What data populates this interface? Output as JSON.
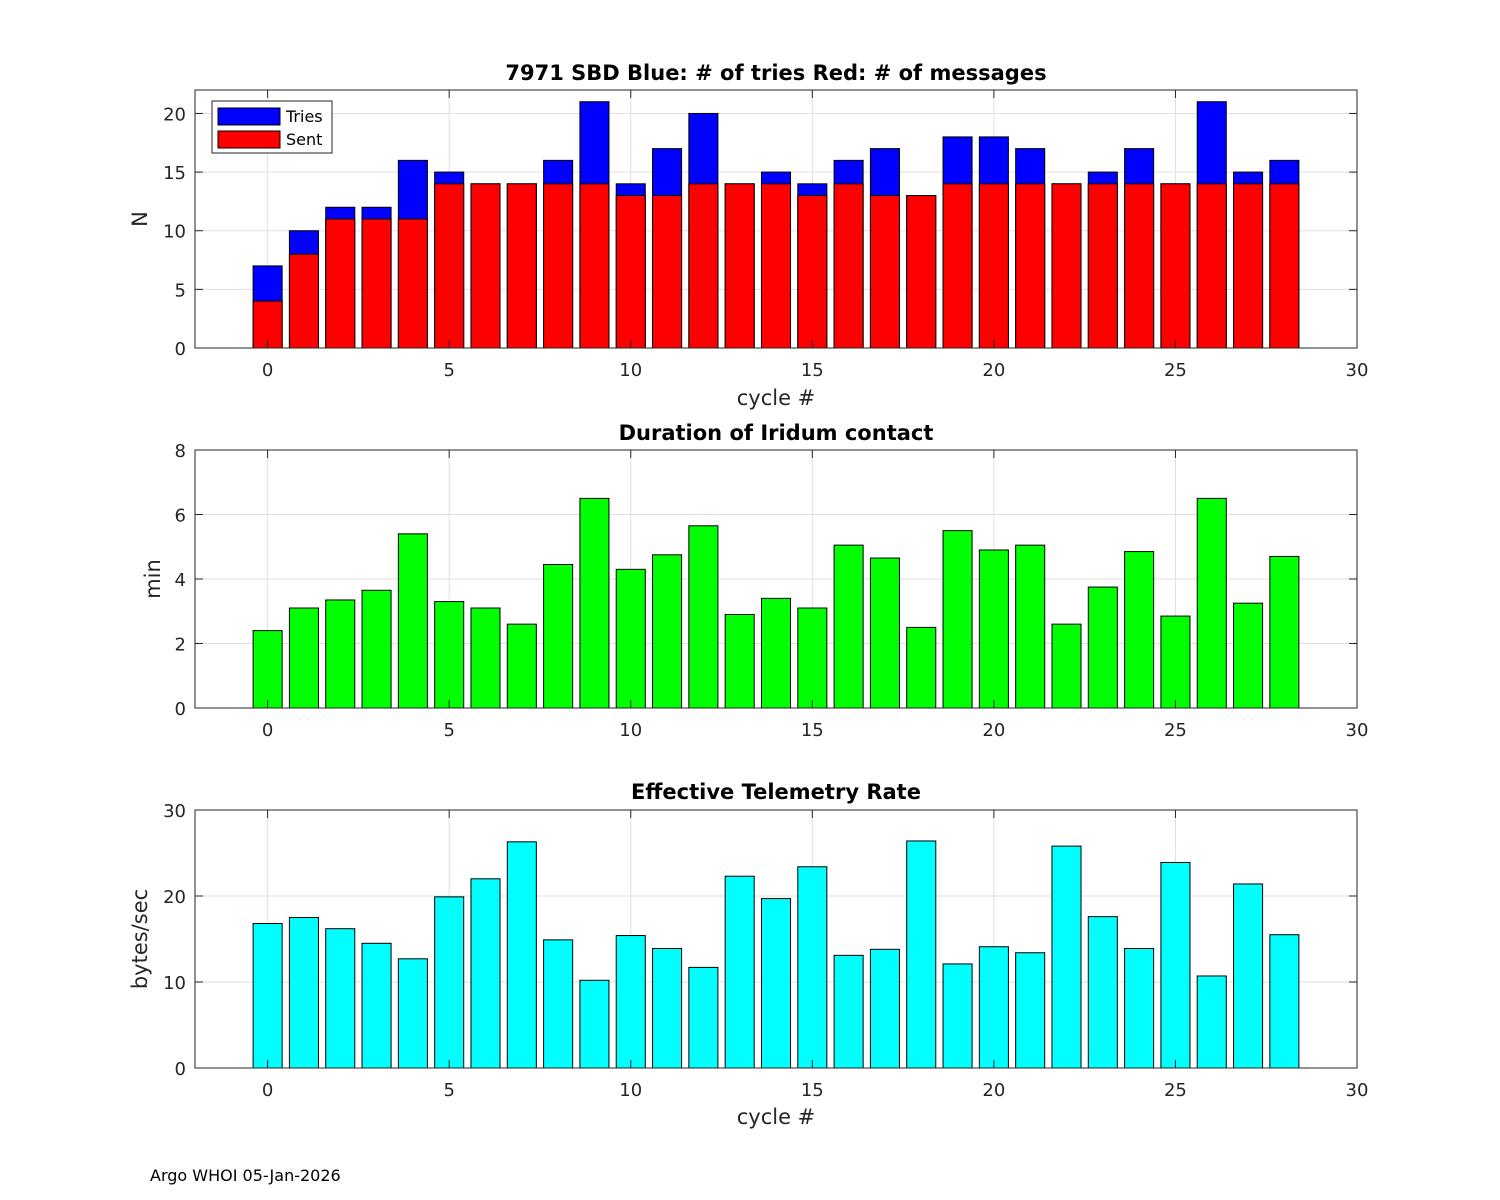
{
  "chart_data": [
    {
      "type": "bar",
      "stacked": false,
      "title": "7971 SBD  Blue: # of tries   Red: # of messages",
      "xlabel": "cycle #",
      "ylabel": "N",
      "xlim": [
        -2,
        30
      ],
      "ylim": [
        0,
        22
      ],
      "xticks": [
        0,
        5,
        10,
        15,
        20,
        25,
        30
      ],
      "yticks": [
        0,
        5,
        10,
        15,
        20
      ],
      "x": [
        0,
        1,
        2,
        3,
        4,
        5,
        6,
        7,
        8,
        9,
        10,
        11,
        12,
        13,
        14,
        15,
        16,
        17,
        18,
        19,
        20,
        21,
        22,
        23,
        24,
        25,
        26,
        27,
        28
      ],
      "grid": true,
      "legend_position": "top-left",
      "series": [
        {
          "name": "Tries",
          "color": "#0000ff",
          "values": [
            7,
            10,
            12,
            12,
            16,
            15,
            14,
            14,
            16,
            21,
            14,
            17,
            20,
            14,
            15,
            14,
            16,
            17,
            13,
            18,
            18,
            17,
            14,
            15,
            17,
            14,
            21,
            15,
            16
          ]
        },
        {
          "name": "Sent",
          "color": "#ff0000",
          "values": [
            4,
            8,
            11,
            11,
            11,
            14,
            14,
            14,
            14,
            14,
            13,
            13,
            14,
            14,
            14,
            13,
            14,
            13,
            13,
            14,
            14,
            14,
            14,
            14,
            14,
            14,
            14,
            14,
            14
          ]
        }
      ]
    },
    {
      "type": "bar",
      "title": "Duration of Iridum contact",
      "xlabel": "",
      "ylabel": "min",
      "xlim": [
        -2,
        30
      ],
      "ylim": [
        0,
        8
      ],
      "xticks": [
        0,
        5,
        10,
        15,
        20,
        25,
        30
      ],
      "yticks": [
        0,
        2,
        4,
        6,
        8
      ],
      "x": [
        -1,
        0,
        1,
        2,
        3,
        4,
        5,
        6,
        7,
        8,
        9,
        10,
        11,
        12,
        13,
        14,
        15,
        16,
        17,
        18,
        19,
        20,
        21,
        22,
        23,
        24,
        25,
        26,
        27,
        28
      ],
      "grid": true,
      "series": [
        {
          "name": "Duration",
          "color": "#00ff00",
          "values": [
            0,
            2.4,
            3.1,
            3.35,
            3.65,
            5.4,
            3.3,
            3.1,
            2.6,
            4.45,
            6.5,
            4.3,
            4.75,
            5.65,
            2.9,
            3.4,
            3.1,
            5.05,
            4.65,
            2.5,
            5.5,
            4.9,
            5.05,
            2.6,
            3.75,
            4.85,
            2.85,
            6.5,
            3.25,
            4.7
          ]
        }
      ]
    },
    {
      "type": "bar",
      "title": "Effective Telemetry Rate",
      "xlabel": "cycle #",
      "ylabel": "bytes/sec",
      "xlim": [
        -2,
        30
      ],
      "ylim": [
        0,
        30
      ],
      "xticks": [
        0,
        5,
        10,
        15,
        20,
        25,
        30
      ],
      "yticks": [
        0,
        10,
        20,
        30
      ],
      "x": [
        0,
        1,
        2,
        3,
        4,
        5,
        6,
        7,
        8,
        9,
        10,
        11,
        12,
        13,
        14,
        15,
        16,
        17,
        18,
        19,
        20,
        21,
        22,
        23,
        24,
        25,
        26,
        27,
        28
      ],
      "grid": true,
      "series": [
        {
          "name": "Rate",
          "color": "#00ffff",
          "values": [
            16.8,
            17.5,
            16.2,
            14.5,
            12.7,
            19.9,
            22,
            26.3,
            14.9,
            10.2,
            15.4,
            13.9,
            11.7,
            22.3,
            19.7,
            23.4,
            13.1,
            13.8,
            26.4,
            12.1,
            14.1,
            13.4,
            25.8,
            17.6,
            13.9,
            23.9,
            10.7,
            21.4,
            15.5
          ]
        }
      ]
    }
  ],
  "footer": "Argo WHOI 05-Jan-2026"
}
